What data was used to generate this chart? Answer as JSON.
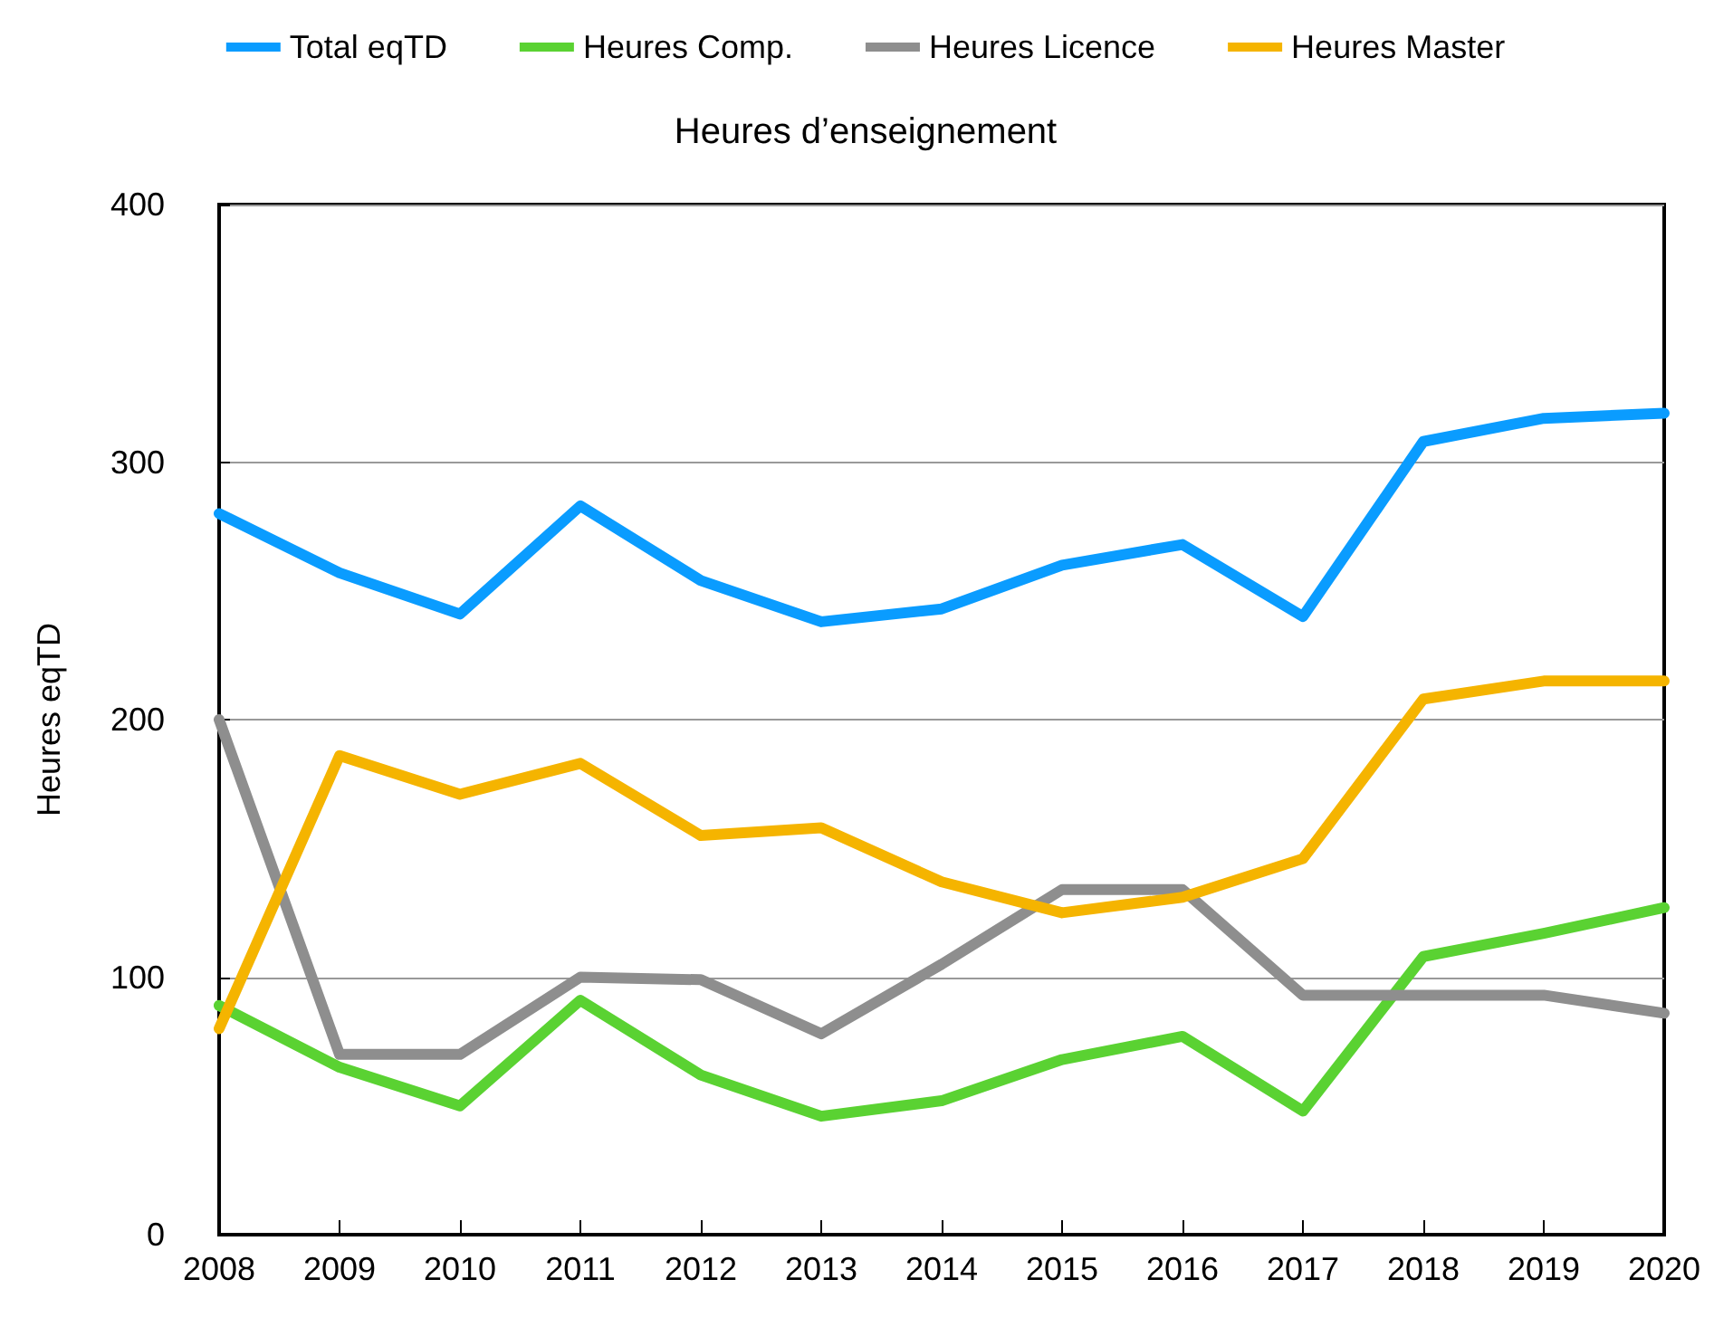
{
  "chart_data": {
    "type": "line",
    "title": "Heures d’enseignement",
    "ylabel": "Heures eqTD",
    "categories": [
      "2008",
      "2009",
      "2010",
      "2011",
      "2012",
      "2013",
      "2014",
      "2015",
      "2016",
      "2017",
      "2018",
      "2019",
      "2020"
    ],
    "series": [
      {
        "name": "Total eqTD",
        "color": "#0a9cff",
        "values": [
          280,
          257,
          241,
          283,
          254,
          238,
          243,
          260,
          268,
          240,
          308,
          317,
          319
        ]
      },
      {
        "name": "Heures Comp.",
        "color": "#5ad232",
        "values": [
          89,
          65,
          50,
          91,
          62,
          46,
          52,
          68,
          77,
          48,
          108,
          117,
          127
        ]
      },
      {
        "name": "Heures Licence",
        "color": "#8e8e8e",
        "values": [
          200,
          70,
          70,
          100,
          99,
          78,
          105,
          134,
          134,
          93,
          93,
          93,
          86
        ]
      },
      {
        "name": "Heures Master",
        "color": "#f5b400",
        "values": [
          80,
          186,
          171,
          183,
          155,
          158,
          137,
          125,
          131,
          146,
          208,
          215,
          215
        ]
      }
    ],
    "ylim": [
      0,
      400
    ],
    "yticks": [
      0,
      100,
      200,
      300,
      400
    ],
    "grid": "y",
    "legend": "top",
    "marker": "none",
    "line_style": "solid"
  }
}
